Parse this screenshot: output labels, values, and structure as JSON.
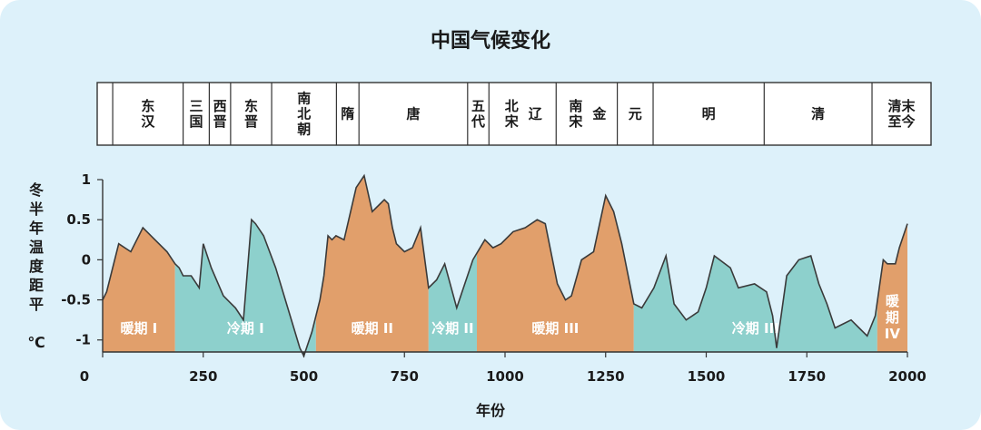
{
  "chart_data": {
    "type": "area",
    "title": "中国气候变化",
    "xlabel": "年份",
    "ylabel": "冬半年温度距平",
    "yunit": "℃",
    "xlim": [
      0,
      2000
    ],
    "ylim": [
      -1.15,
      1.0
    ],
    "x_ticks": [
      0,
      250,
      500,
      750,
      1000,
      1250,
      1500,
      1750,
      2000
    ],
    "y_ticks": [
      {
        "value": 1,
        "label": "1"
      },
      {
        "value": 0.5,
        "label": "0.5"
      },
      {
        "value": 0,
        "label": "0"
      },
      {
        "value": -0.5,
        "label": "-0.5"
      },
      {
        "value": -1,
        "label": "-1"
      }
    ],
    "dynasties": [
      {
        "label": "东汉",
        "start": 25,
        "end": 200,
        "lines": [
          "东",
          "汉"
        ]
      },
      {
        "label": "三国",
        "start": 200,
        "end": 265,
        "lines": [
          "三",
          "国"
        ]
      },
      {
        "label": "西晋",
        "start": 265,
        "end": 318,
        "lines": [
          "西",
          "晋"
        ]
      },
      {
        "label": "东晋",
        "start": 318,
        "end": 420,
        "lines": [
          "东",
          "晋"
        ]
      },
      {
        "label": "南北朝",
        "start": 420,
        "end": 581,
        "lines": [
          "南",
          "北",
          "朝"
        ]
      },
      {
        "label": "隋",
        "start": 581,
        "end": 637,
        "lines": [
          "隋"
        ]
      },
      {
        "label": "唐",
        "start": 637,
        "end": 907,
        "lines": [
          "唐"
        ]
      },
      {
        "label": "五代",
        "start": 907,
        "end": 960,
        "lines": [
          "五",
          "代"
        ]
      },
      {
        "label": "北宋 辽",
        "start": 960,
        "end": 1127,
        "lines": [
          "北",
          "宋"
        ],
        "side": "辽"
      },
      {
        "label": "南宋 金",
        "start": 1127,
        "end": 1279,
        "lines": [
          "南",
          "宋"
        ],
        "side": "金"
      },
      {
        "label": "元",
        "start": 1279,
        "end": 1368,
        "lines": [
          "元"
        ]
      },
      {
        "label": "明",
        "start": 1368,
        "end": 1644,
        "lines": [
          "明"
        ]
      },
      {
        "label": "清",
        "start": 1644,
        "end": 1912,
        "lines": [
          "清"
        ]
      },
      {
        "label": "清末至今",
        "start": 1912,
        "end": 2050,
        "lines": [
          "清末",
          "至今"
        ]
      }
    ],
    "periods": [
      {
        "label": "暖期 I",
        "start": 0,
        "end": 180,
        "type": "warm"
      },
      {
        "label": "冷期 I",
        "start": 180,
        "end": 530,
        "type": "cold"
      },
      {
        "label": "暖期 II",
        "start": 530,
        "end": 810,
        "type": "warm"
      },
      {
        "label": "冷期 II",
        "start": 810,
        "end": 930,
        "type": "cold"
      },
      {
        "label": "暖期 III",
        "start": 930,
        "end": 1320,
        "type": "warm"
      },
      {
        "label": "冷期 III",
        "start": 1320,
        "end": 1925,
        "type": "cold"
      },
      {
        "label": "暖期 IV",
        "start": 1925,
        "end": 2000,
        "type": "warm",
        "lines": [
          "暖",
          "期",
          "IV"
        ]
      }
    ],
    "series": [
      {
        "x": [
          0,
          10,
          40,
          70,
          100,
          130,
          160,
          180,
          190,
          200,
          220,
          240,
          250,
          270,
          300,
          330,
          350,
          370,
          380,
          400,
          430,
          460,
          490,
          500,
          520,
          540,
          550,
          560,
          570,
          580,
          600,
          630,
          650,
          670,
          690,
          700,
          710,
          720,
          730,
          750,
          770,
          790,
          810,
          830,
          850,
          880,
          900,
          920,
          950,
          970,
          990,
          1020,
          1050,
          1080,
          1100,
          1130,
          1150,
          1165,
          1190,
          1220,
          1250,
          1270,
          1290,
          1320,
          1340,
          1370,
          1400,
          1420,
          1450,
          1480,
          1500,
          1520,
          1560,
          1580,
          1620,
          1650,
          1665,
          1675,
          1700,
          1730,
          1760,
          1780,
          1800,
          1820,
          1840,
          1860,
          1880,
          1900,
          1920,
          1940,
          1950,
          1970,
          1980,
          2000
        ],
        "y": [
          -0.5,
          -0.4,
          0.2,
          0.1,
          0.4,
          0.25,
          0.1,
          -0.05,
          -0.1,
          -0.2,
          -0.2,
          -0.35,
          0.2,
          -0.1,
          -0.45,
          -0.6,
          -0.75,
          0.5,
          0.45,
          0.3,
          -0.1,
          -0.6,
          -1.1,
          -1.2,
          -0.9,
          -0.5,
          -0.2,
          0.3,
          0.25,
          0.3,
          0.25,
          0.9,
          1.05,
          0.6,
          0.7,
          0.75,
          0.7,
          0.4,
          0.2,
          0.1,
          0.15,
          0.4,
          -0.35,
          -0.25,
          -0.05,
          -0.6,
          -0.3,
          0.0,
          0.25,
          0.15,
          0.2,
          0.35,
          0.4,
          0.5,
          0.45,
          -0.3,
          -0.5,
          -0.45,
          0.0,
          0.1,
          0.8,
          0.6,
          0.2,
          -0.55,
          -0.6,
          -0.35,
          0.05,
          -0.55,
          -0.75,
          -0.65,
          -0.35,
          0.05,
          -0.1,
          -0.35,
          -0.3,
          -0.4,
          -0.7,
          -1.1,
          -0.2,
          0.0,
          0.05,
          -0.3,
          -0.55,
          -0.85,
          -0.8,
          -0.75,
          -0.85,
          -0.95,
          -0.7,
          0.0,
          -0.05,
          -0.05,
          0.15,
          0.45
        ]
      }
    ],
    "colors": {
      "warm": "#e19f6b",
      "cold": "#8dd0cc",
      "line": "#3a3a3a",
      "background": "#ddf1fa"
    }
  }
}
